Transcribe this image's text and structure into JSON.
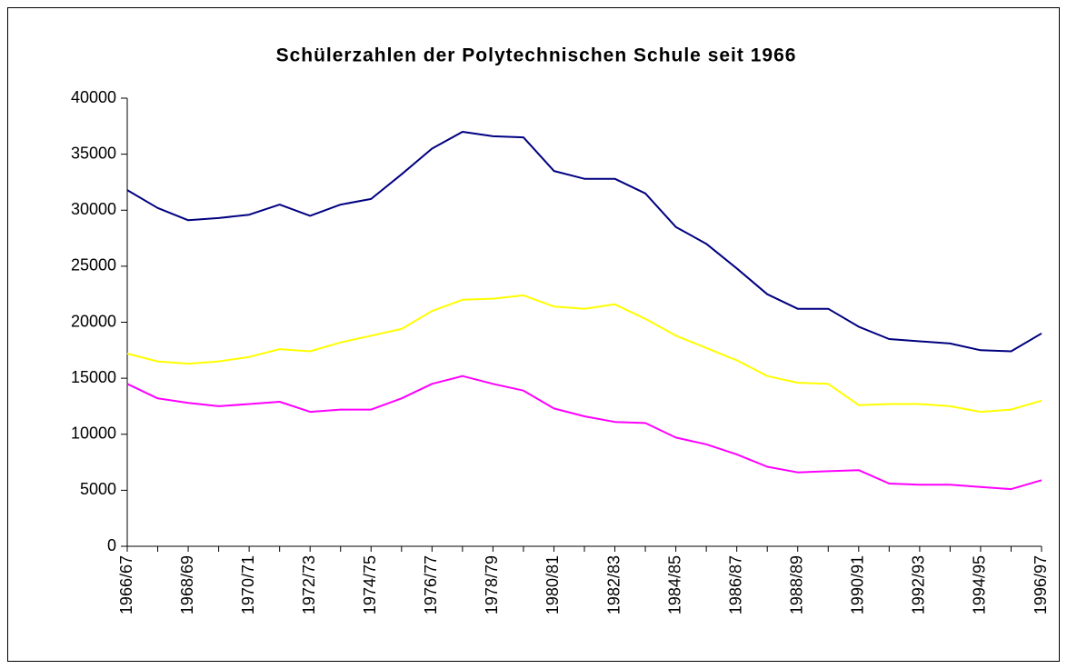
{
  "chart_data": {
    "type": "line",
    "title": "Schülerzahlen der Polytechnischen Schule seit 1966",
    "categories": [
      "1966/67",
      null,
      "1968/69",
      null,
      "1970/71",
      null,
      "1972/73",
      null,
      "1974/75",
      null,
      "1976/77",
      null,
      "1978/79",
      null,
      "1980/81",
      null,
      "1982/83",
      null,
      "1984/85",
      null,
      "1986/87",
      null,
      "1988/89",
      null,
      "1990/91",
      null,
      "1992/93",
      null,
      "1994/95",
      null,
      "1996/97"
    ],
    "series": [
      {
        "color": "#000080",
        "values": [
          31800,
          30200,
          29100,
          29300,
          29600,
          30500,
          29500,
          30500,
          31000,
          33200,
          35500,
          37000,
          36600,
          36500,
          33500,
          32800,
          32800,
          31500,
          28500,
          27000,
          24800,
          22500,
          21200,
          21200,
          19600,
          18500,
          18300,
          18100,
          17500,
          17400,
          19000
        ]
      },
      {
        "color": "#ffff00",
        "values": [
          17200,
          16500,
          16300,
          16500,
          16900,
          17600,
          17400,
          18200,
          18800,
          19400,
          21000,
          22000,
          22100,
          22400,
          21400,
          21200,
          21600,
          20300,
          18800,
          17700,
          16600,
          15200,
          14600,
          14500,
          12600,
          12700,
          12700,
          12500,
          12000,
          12200,
          13000
        ]
      },
      {
        "color": "#ff00ff",
        "values": [
          14500,
          13200,
          12800,
          12500,
          12700,
          12900,
          12000,
          12200,
          12200,
          13200,
          14500,
          15200,
          14500,
          13900,
          12300,
          11600,
          11100,
          11000,
          9700,
          9100,
          8200,
          7100,
          6600,
          6700,
          6800,
          5600,
          5500,
          5500,
          5300,
          5100,
          5900
        ]
      }
    ],
    "ylim": [
      0,
      40000
    ],
    "yticks": [
      0,
      5000,
      10000,
      15000,
      20000,
      25000,
      30000,
      35000,
      40000
    ]
  }
}
